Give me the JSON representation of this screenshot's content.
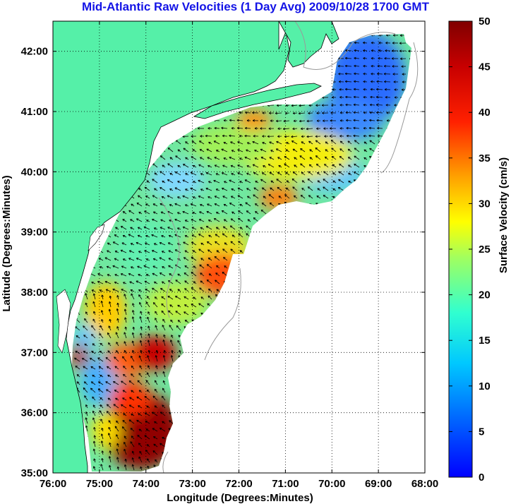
{
  "title": "Mid-Atlantic Raw Velocities (1 Day Avg) 2009/10/28 1700 GMT",
  "x_axis": {
    "label": "Longitude (Degrees:Minutes)",
    "ticks": [
      "76:00",
      "75:00",
      "74:00",
      "73:00",
      "72:00",
      "71:00",
      "70:00",
      "69:00",
      "68:00"
    ]
  },
  "y_axis": {
    "label": "Latitude (Degrees:Minutes)",
    "ticks": [
      "35:00",
      "36:00",
      "37:00",
      "38:00",
      "39:00",
      "40:00",
      "41:00",
      "42:00"
    ]
  },
  "colorbar": {
    "label": "Surface Velocity (cm/s)",
    "ticks": [
      "0",
      "5",
      "10",
      "15",
      "20",
      "25",
      "30",
      "35",
      "40",
      "45",
      "50"
    ],
    "min": 0,
    "max": 50,
    "colormap": "jet"
  },
  "colors": {
    "land": "#55f0a8",
    "title": "#1414e6",
    "bathymetry": "#999999",
    "vectors": "#000000"
  },
  "map": {
    "lon_range": [
      -76,
      -68
    ],
    "lat_range": [
      35,
      42.5
    ],
    "grid": "dotted",
    "features": [
      "coastline",
      "bathymetry-contours",
      "current-vectors",
      "velocity-field"
    ]
  }
}
